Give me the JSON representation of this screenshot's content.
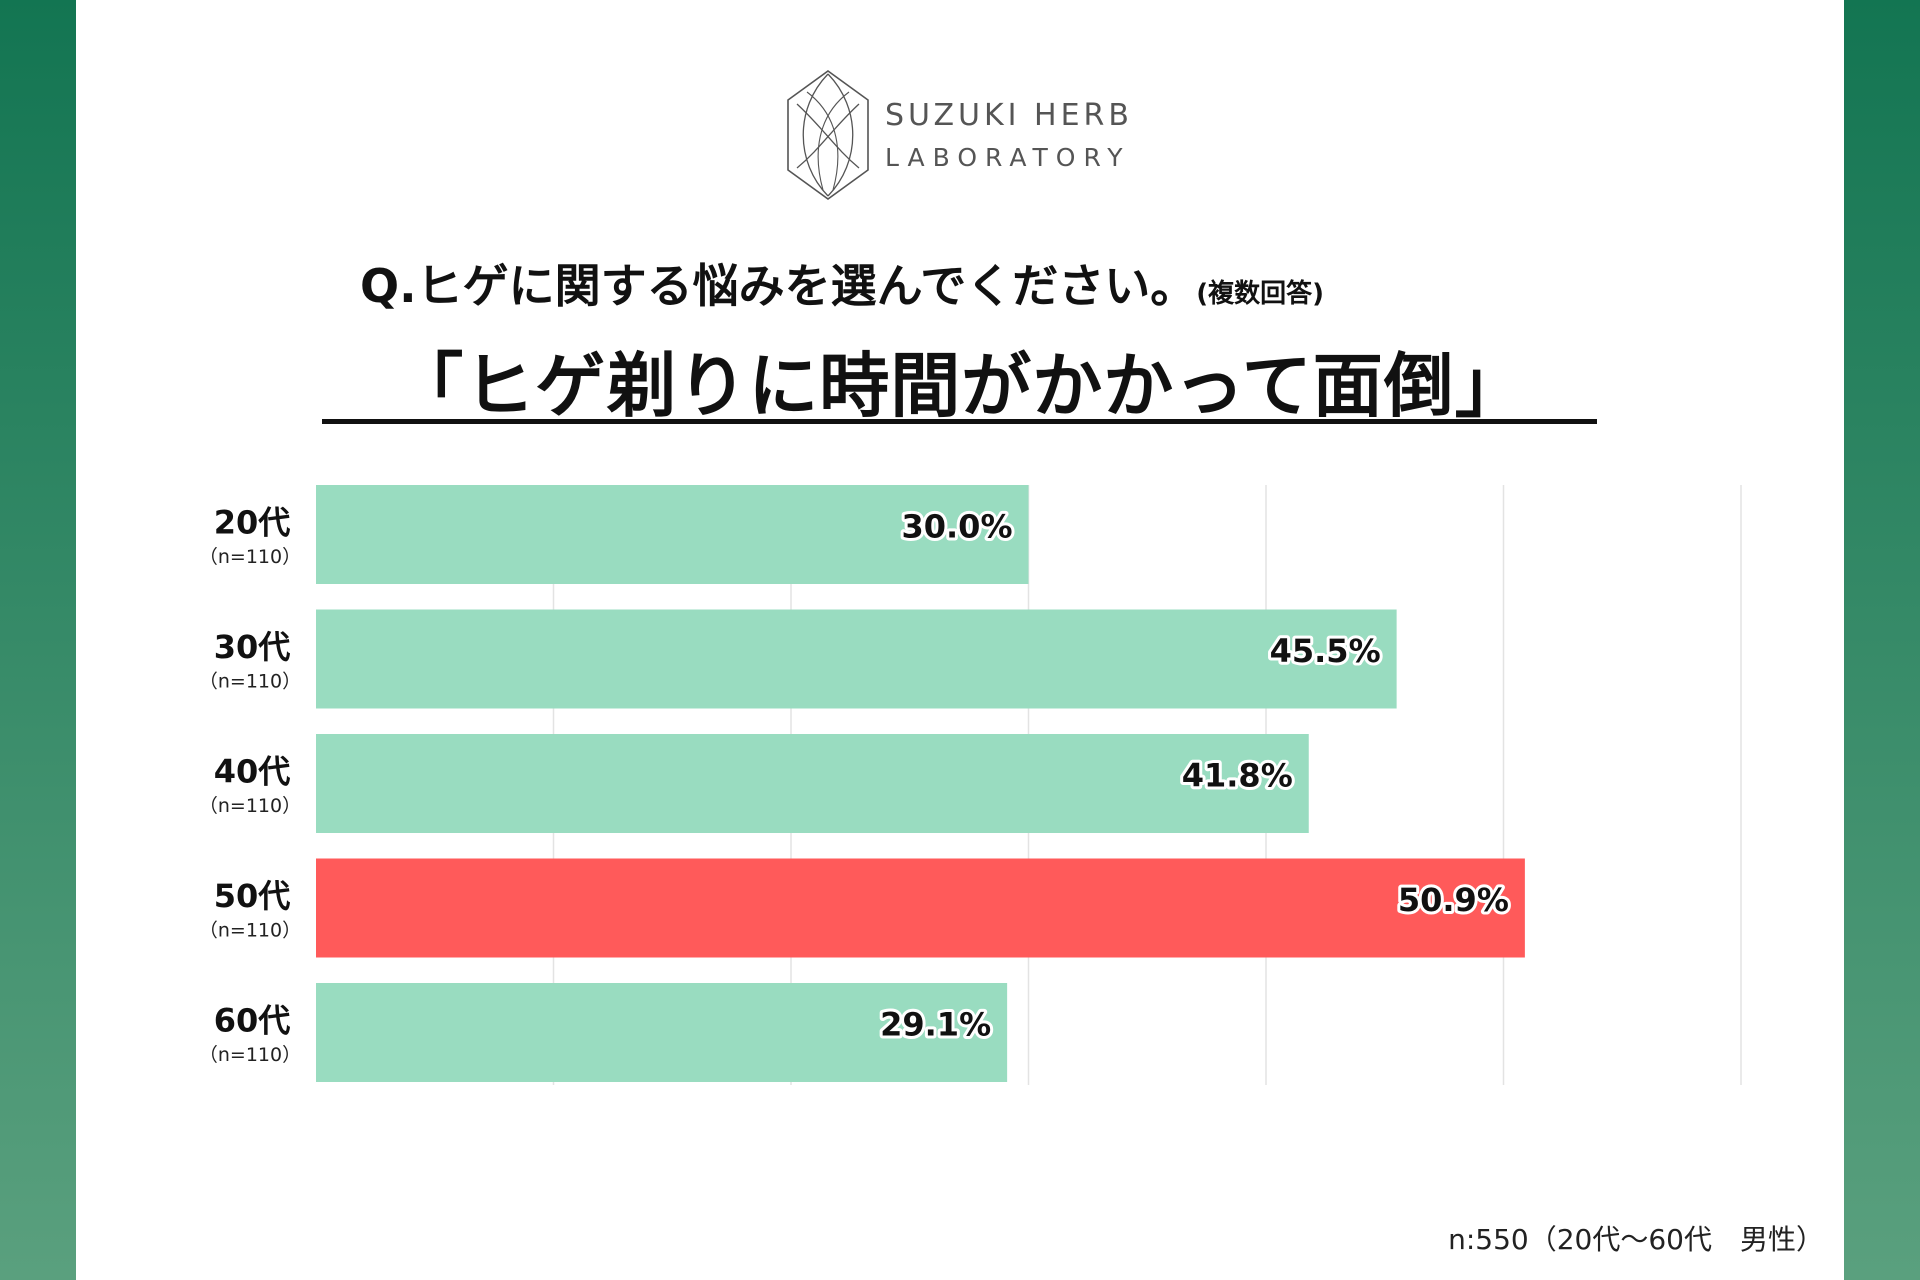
{
  "brand": {
    "line1": "SUZUKI HERB",
    "line2": "LABORATORY"
  },
  "question": {
    "main": "Q.ヒゲに関する悩みを選んでください。",
    "note": "(複数回答)"
  },
  "headline": "「ヒゲ剃りに時間がかかって面倒」",
  "chart_data": {
    "type": "bar",
    "orientation": "horizontal",
    "categories": [
      "20代",
      "30代",
      "40代",
      "50代",
      "60代"
    ],
    "category_notes": [
      "（n=110）",
      "（n=110）",
      "（n=110）",
      "（n=110）",
      "（n=110）"
    ],
    "values": [
      30.0,
      45.5,
      41.8,
      50.9,
      29.1
    ],
    "value_labels": [
      "30.0%",
      "45.5%",
      "41.8%",
      "50.9%",
      "29.1%"
    ],
    "xlim": [
      0,
      60
    ],
    "gridlines": true,
    "highlight_index": 3,
    "colors": {
      "bar": "#99dcc0",
      "highlight": "#ff5a5a",
      "grid": "#e3e3e3"
    }
  },
  "footnote": "n:550（20代〜60代　男性）",
  "colors": {
    "side_panel_top": "#137552",
    "side_panel_bottom": "#5aa07e"
  }
}
